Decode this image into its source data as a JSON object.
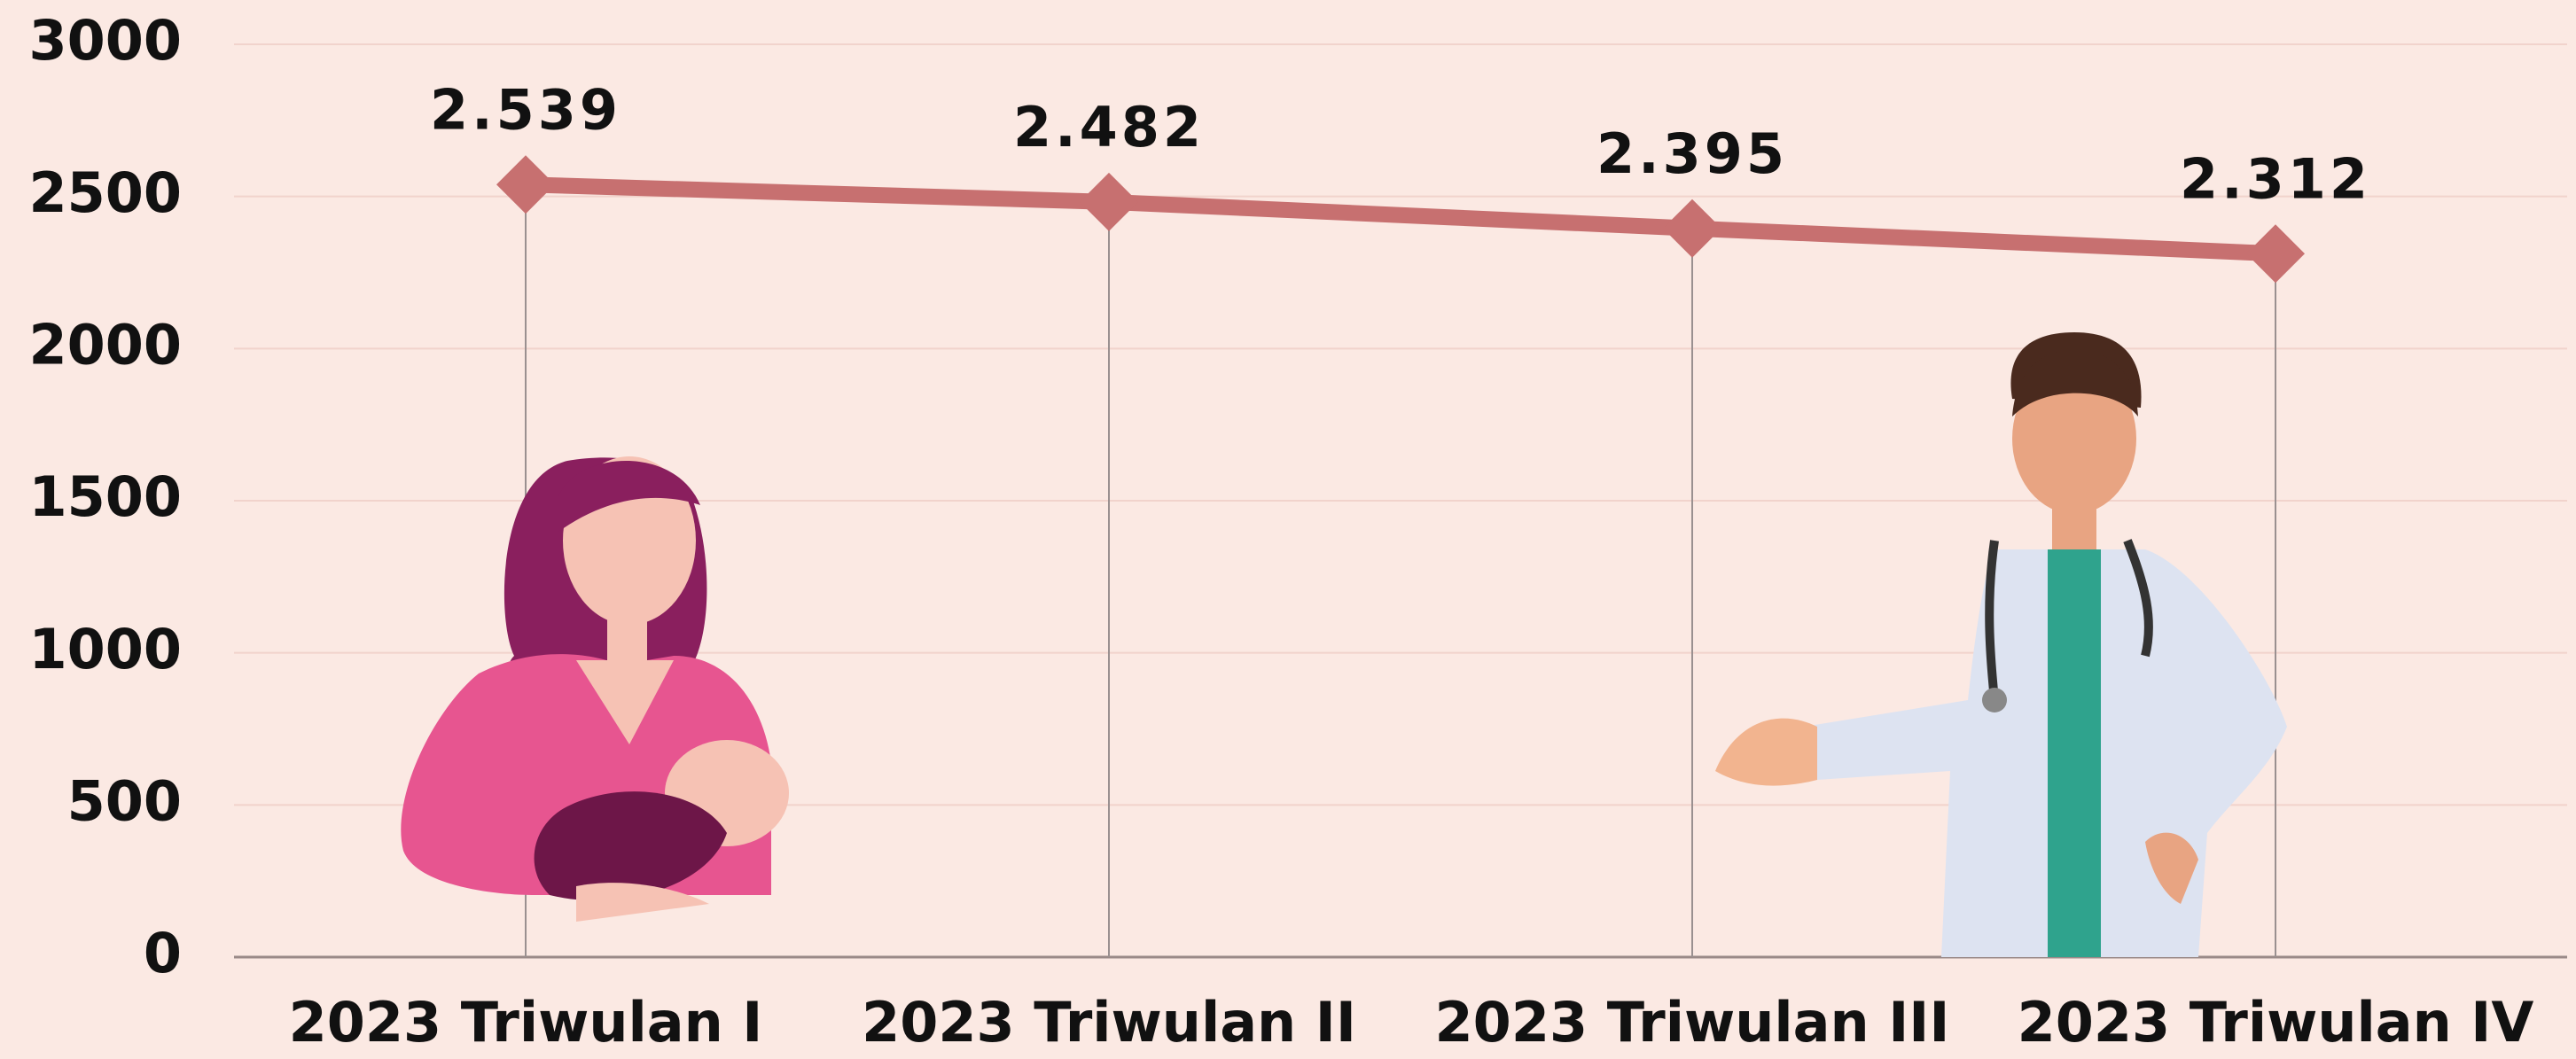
{
  "chart_data": {
    "type": "line",
    "categories": [
      "2023 Triwulan I",
      "2023 Triwulan II",
      "2023 Triwulan III",
      "2023 Triwulan IV"
    ],
    "values": [
      2539,
      2482,
      2395,
      2312
    ],
    "value_labels": [
      "2.539",
      "2.482",
      "2.395",
      "2.312"
    ],
    "color": "#c77070",
    "ylim": [
      0,
      3000
    ],
    "yticks": [
      0,
      500,
      1000,
      1500,
      2000,
      2500,
      3000
    ],
    "grid": true
  }
}
